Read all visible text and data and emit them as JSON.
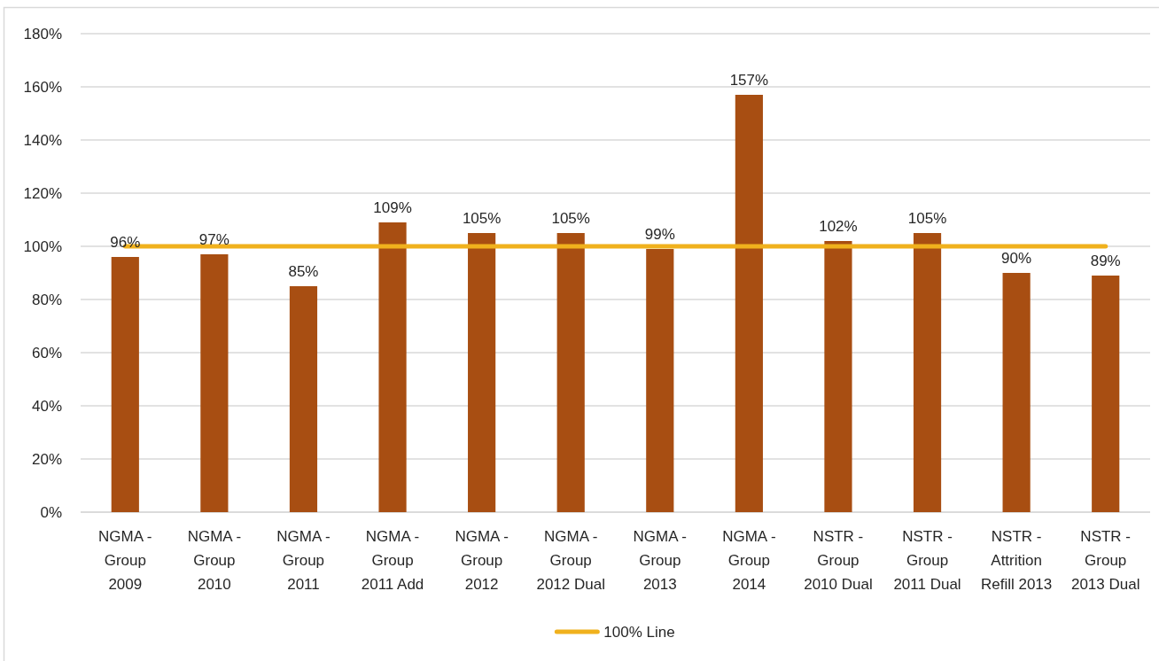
{
  "chart_data": {
    "type": "bar",
    "categories": [
      "NGMA - Group 2009",
      "NGMA - Group 2010",
      "NGMA - Group 2011",
      "NGMA - Group 2011 Add",
      "NGMA - Group 2012",
      "NGMA - Group 2012 Dual",
      "NGMA - Group 2013",
      "NGMA - Group 2014",
      "NSTR - Group 2010 Dual",
      "NSTR - Group 2011 Dual",
      "NSTR - Attrition Refill 2013",
      "NSTR - Group 2013 Dual"
    ],
    "series": [
      {
        "color": "#a84e12",
        "values": [
          96,
          97,
          85,
          109,
          105,
          105,
          99,
          157,
          102,
          105,
          90,
          89
        ],
        "value_labels": [
          "96%",
          "97%",
          "85%",
          "109%",
          "105%",
          "105%",
          "99%",
          "157%",
          "102%",
          "105%",
          "90%",
          "89%"
        ]
      },
      {
        "type": "line",
        "name": "100% Line",
        "color": "#f0b11d",
        "values": [
          100,
          100,
          100,
          100,
          100,
          100,
          100,
          100,
          100,
          100,
          100,
          100
        ]
      }
    ],
    "ylim": [
      0,
      180
    ],
    "yticks": [
      {
        "value": 0,
        "label": "0%"
      },
      {
        "value": 20,
        "label": "20%"
      },
      {
        "value": 40,
        "label": "40%"
      },
      {
        "value": 60,
        "label": "60%"
      },
      {
        "value": 80,
        "label": "80%"
      },
      {
        "value": 100,
        "label": "100%"
      },
      {
        "value": 120,
        "label": "120%"
      },
      {
        "value": 140,
        "label": "140%"
      },
      {
        "value": 160,
        "label": "160%"
      },
      {
        "value": 180,
        "label": "180%"
      }
    ],
    "grid": "y",
    "legend": "bottom"
  }
}
